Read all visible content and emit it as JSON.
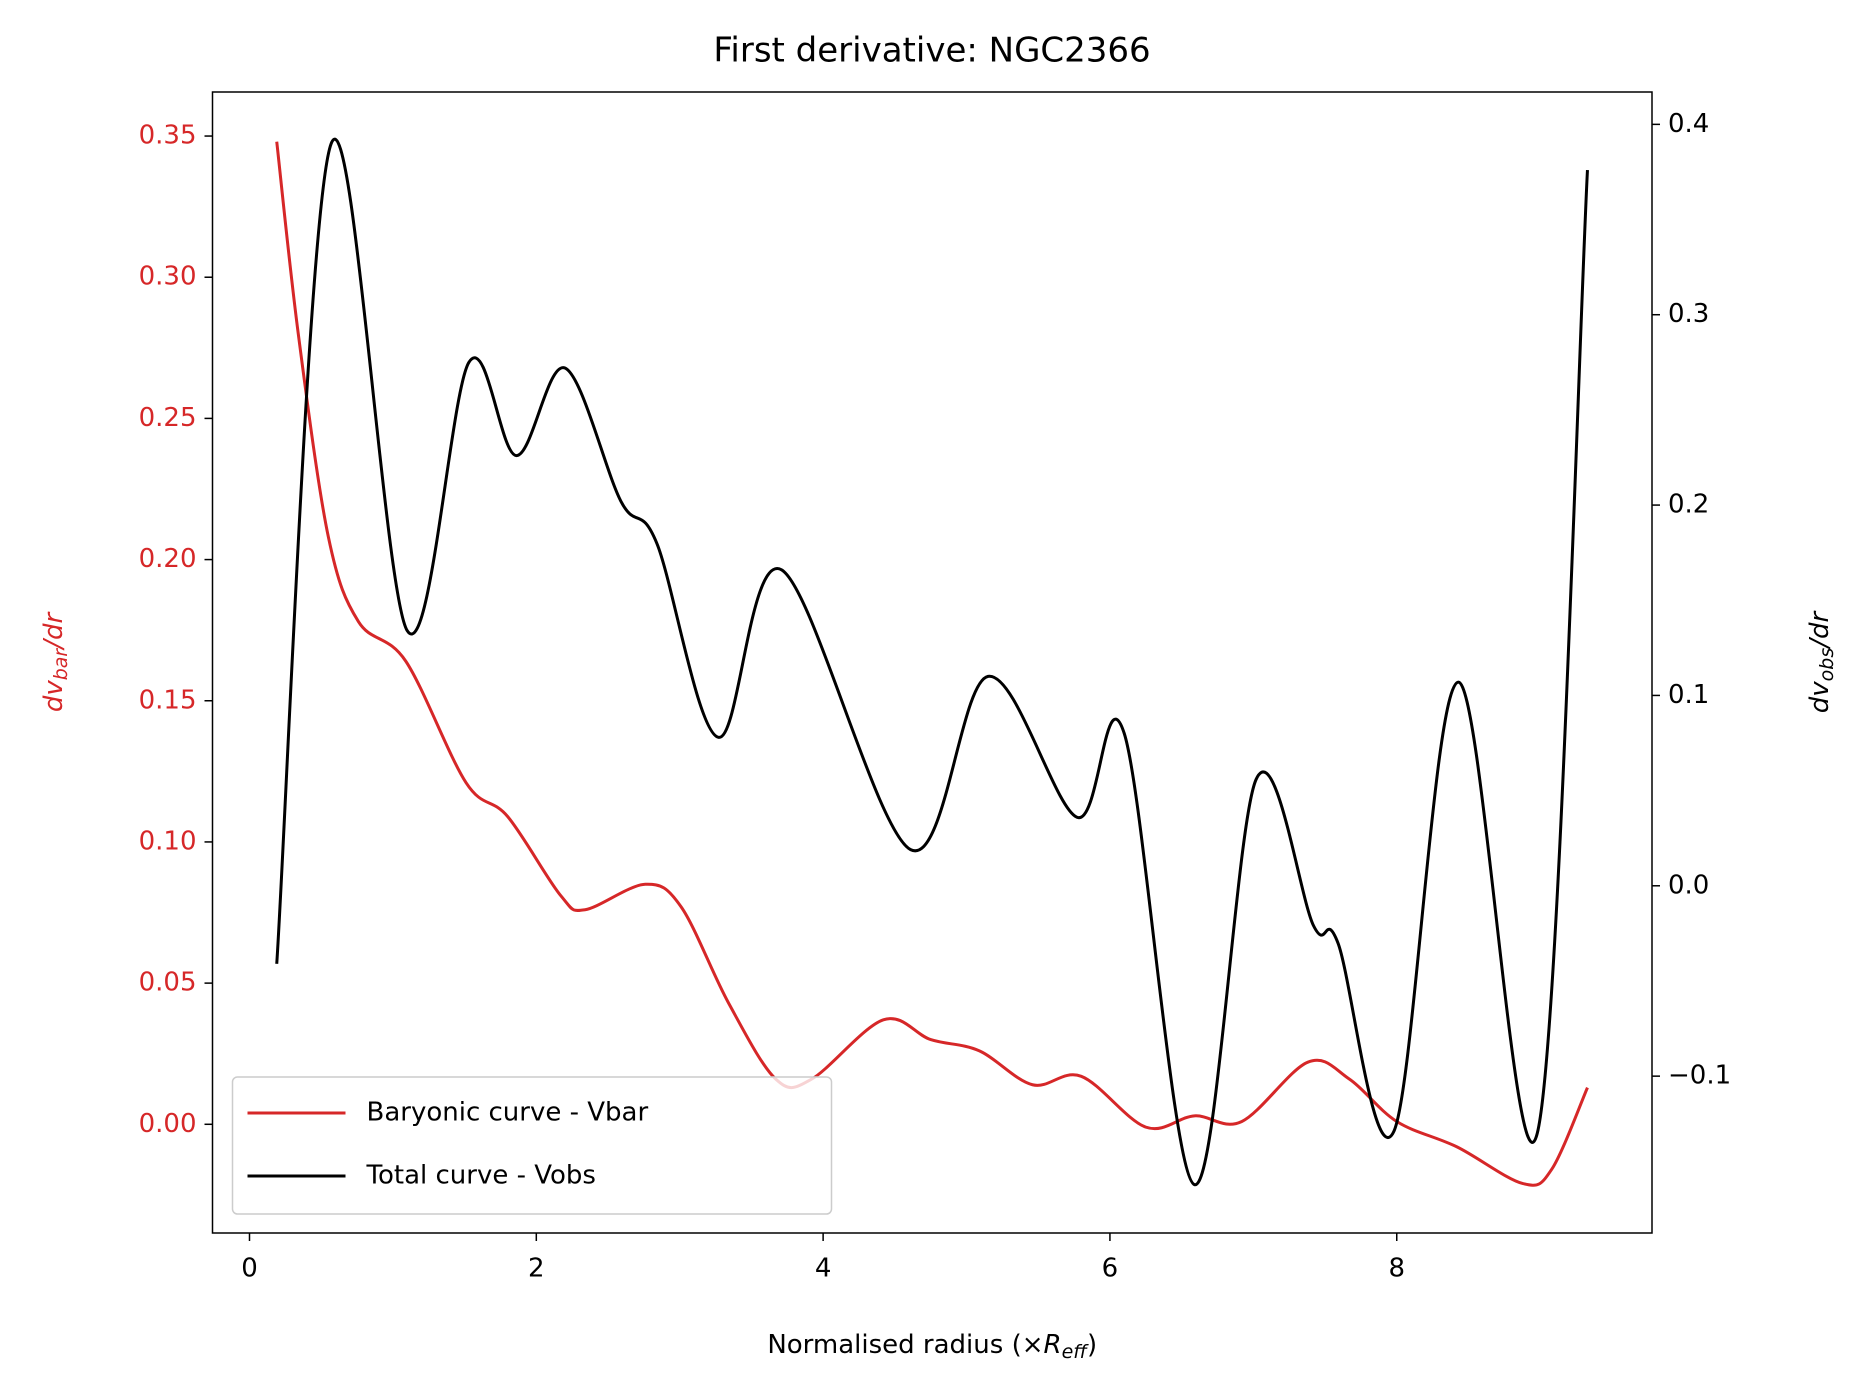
{
  "chart_data": {
    "type": "line",
    "title": "First derivative: NGC2366",
    "xlabel": {
      "main": "Normalised radius (×",
      "var": "R",
      "sub": "eff",
      "tail": ")"
    },
    "ylabel": {
      "main": "dv",
      "sub": "bar",
      "tail": "/dr"
    },
    "y2label": {
      "main": "dv",
      "sub": "obs",
      "tail": "/dr"
    },
    "xlim": [
      -0.258,
      9.78
    ],
    "xticks": [
      0,
      2,
      4,
      6,
      8
    ],
    "ylim": [
      -0.0385,
      0.3656
    ],
    "yticks": [
      {
        "value": 0,
        "label": "0.00"
      },
      0.05,
      {
        "value": 0.1,
        "label": "0.10"
      },
      0.15,
      {
        "value": 0.2,
        "label": "0.20"
      },
      0.25,
      {
        "value": 0.3,
        "label": "0.30"
      },
      0.35
    ],
    "y2lim": [
      -0.1824,
      0.417
    ],
    "y2ticks": [
      {
        "value": -0.1,
        "label": "−0.1"
      },
      {
        "value": 0,
        "label": "0.0"
      },
      0.1,
      0.2,
      0.3,
      0.4
    ],
    "ytick_color": "#d62728",
    "legend": "lower left",
    "series": [
      {
        "name": "Baryonic curve - Vbar",
        "color": "#d62728",
        "x": [
          0.19,
          0.34,
          0.55,
          0.76,
          1.09,
          1.51,
          1.8,
          2.17,
          2.34,
          2.76,
          3.01,
          3.34,
          3.67,
          3.92,
          4.42,
          4.75,
          5.09,
          5.46,
          5.8,
          6.25,
          6.59,
          6.92,
          7.38,
          7.67,
          8.0,
          8.42,
          8.88,
          9.08,
          9.33
        ],
        "values": [
          0.348,
          0.28,
          0.208,
          0.178,
          0.164,
          0.121,
          0.109,
          0.081,
          0.076,
          0.085,
          0.077,
          0.043,
          0.016,
          0.016,
          0.037,
          0.03,
          0.026,
          0.014,
          0.017,
          -0.001,
          0.003,
          0.001,
          0.022,
          0.016,
          0.001,
          -0.008,
          -0.021,
          -0.016,
          0.013
        ]
      },
      {
        "name": "Total curve - Vobs",
        "color": "#000000",
        "axis": "y2",
        "x": [
          0.19,
          0.57,
          1.1,
          1.53,
          1.86,
          2.2,
          2.59,
          2.84,
          3.27,
          3.71,
          4.61,
          5.15,
          5.77,
          6.1,
          6.59,
          7.02,
          7.42,
          7.59,
          7.98,
          8.43,
          8.98,
          9.33
        ],
        "values": [
          -0.041,
          0.39,
          0.134,
          0.275,
          0.226,
          0.272,
          0.202,
          0.18,
          0.078,
          0.166,
          0.019,
          0.11,
          0.036,
          0.08,
          -0.157,
          0.056,
          -0.021,
          -0.03,
          -0.129,
          0.107,
          -0.13,
          0.376
        ]
      }
    ]
  }
}
